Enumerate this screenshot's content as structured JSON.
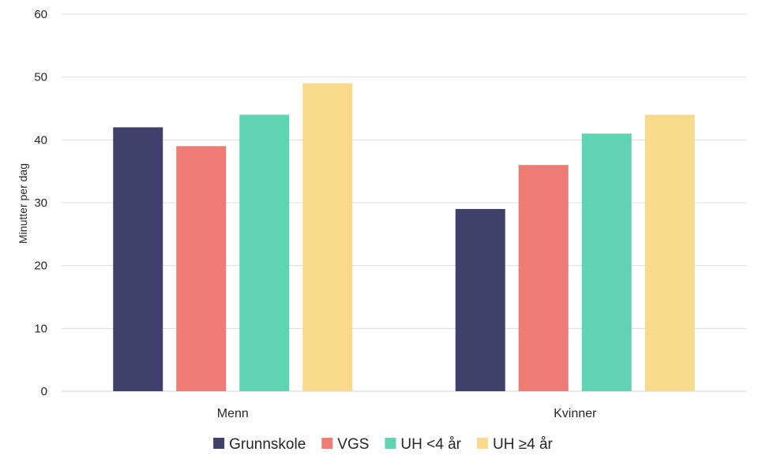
{
  "chart_data": {
    "type": "bar",
    "categories": [
      "Menn",
      "Kvinner"
    ],
    "series": [
      {
        "name": "Grunnskole",
        "values": [
          42,
          29
        ],
        "color": "#40416b"
      },
      {
        "name": "VGS",
        "values": [
          39,
          36
        ],
        "color": "#ee7b74"
      },
      {
        "name": "UH <4 år",
        "values": [
          44,
          41
        ],
        "color": "#5fd3b2"
      },
      {
        "name": "UH ≥4 år",
        "values": [
          49,
          44
        ],
        "color": "#f8da8b"
      }
    ],
    "ylabel": "Minutter per dag",
    "ylim": [
      0,
      60
    ],
    "yticks": [
      0,
      10,
      20,
      30,
      40,
      50,
      60
    ],
    "grid": true,
    "legend": "bottom"
  }
}
